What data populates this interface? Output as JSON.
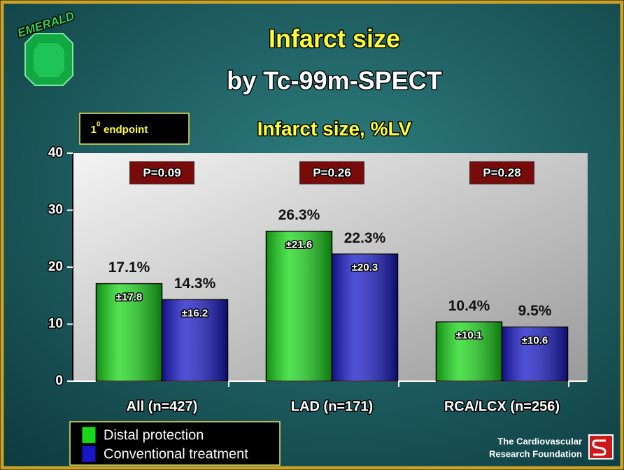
{
  "logo_text": "EMERALD",
  "footer": [
    "The Cardiovascular",
    "Research Foundation"
  ],
  "chart_data": {
    "type": "bar",
    "title": "Infarct size",
    "subtitle": "by Tc-99m-SPECT",
    "chart_title": "Infarct size, %LV",
    "badge": {
      "number": "1",
      "superscript": "0",
      "text": "endpoint"
    },
    "categories": [
      "All (n=427)",
      "LAD (n=171)",
      "RCA/LCX (n=256)"
    ],
    "p_values": [
      "P=0.09",
      "P=0.26",
      "P=0.28"
    ],
    "series": [
      {
        "name": "Distal protection",
        "color": "#19d719",
        "values": [
          17.1,
          26.3,
          10.4
        ],
        "value_labels": [
          "17.1%",
          "26.3%",
          "10.4%"
        ],
        "sd_labels": [
          "±17.8",
          "±21.6",
          "±10.1"
        ]
      },
      {
        "name": "Conventional treatment",
        "color": "#1717c8",
        "values": [
          14.3,
          22.3,
          9.5
        ],
        "value_labels": [
          "14.3%",
          "22.3%",
          "9.5%"
        ],
        "sd_labels": [
          "±16.2",
          "±20.3",
          "±10.6"
        ]
      }
    ],
    "ylim": [
      0,
      40
    ],
    "yticks": [
      0,
      10,
      20,
      30,
      40
    ]
  }
}
